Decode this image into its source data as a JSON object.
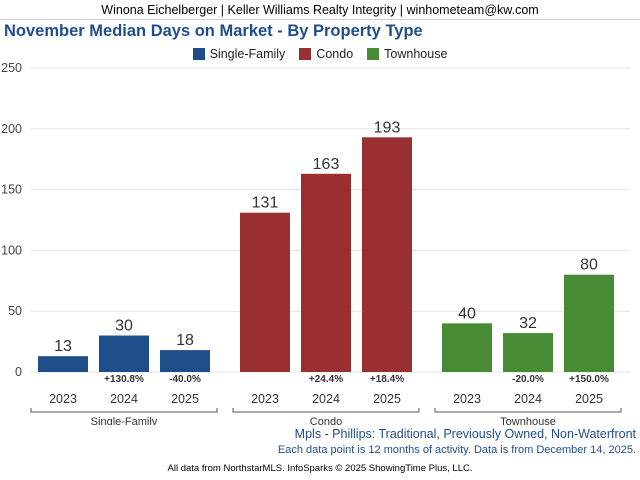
{
  "header": {
    "banner": "Winona Eichelberger | Keller Williams Realty Integrity | winhometeam@kw.com"
  },
  "chart_data": {
    "type": "bar",
    "title": "November Median Days on Market - By Property Type",
    "subtitle": "Mpls - Phillips: Traditional, Previously Owned, Non-Waterfront",
    "note": "Each data point is 12 months of activity. Data is from December 14, 2025.",
    "ylim": [
      0,
      250
    ],
    "yticks": [
      0,
      50,
      100,
      150,
      200,
      250
    ],
    "grid": true,
    "legend_position": "top-center",
    "groups": [
      {
        "name": "Single-Family",
        "color": "#1d4e8a",
        "categories": [
          "2023",
          "2024",
          "2025"
        ],
        "values": [
          13,
          30,
          18
        ],
        "changes": [
          "",
          "+130.8%",
          "-40.0%"
        ]
      },
      {
        "name": "Condo",
        "color": "#9a2f31",
        "categories": [
          "2023",
          "2024",
          "2025"
        ],
        "values": [
          131,
          163,
          193
        ],
        "changes": [
          "",
          "+24.4%",
          "+18.4%"
        ]
      },
      {
        "name": "Townhouse",
        "color": "#478b34",
        "categories": [
          "2023",
          "2024",
          "2025"
        ],
        "values": [
          40,
          32,
          80
        ],
        "changes": [
          "",
          "-20.0%",
          "+150.0%"
        ]
      }
    ]
  },
  "legend": {
    "items": [
      "Single-Family",
      "Condo",
      "Townhouse"
    ]
  },
  "footer": {
    "credit": "All data from NorthstarMLS. InfoSparks © 2025 ShowingTime Plus, LLC."
  }
}
